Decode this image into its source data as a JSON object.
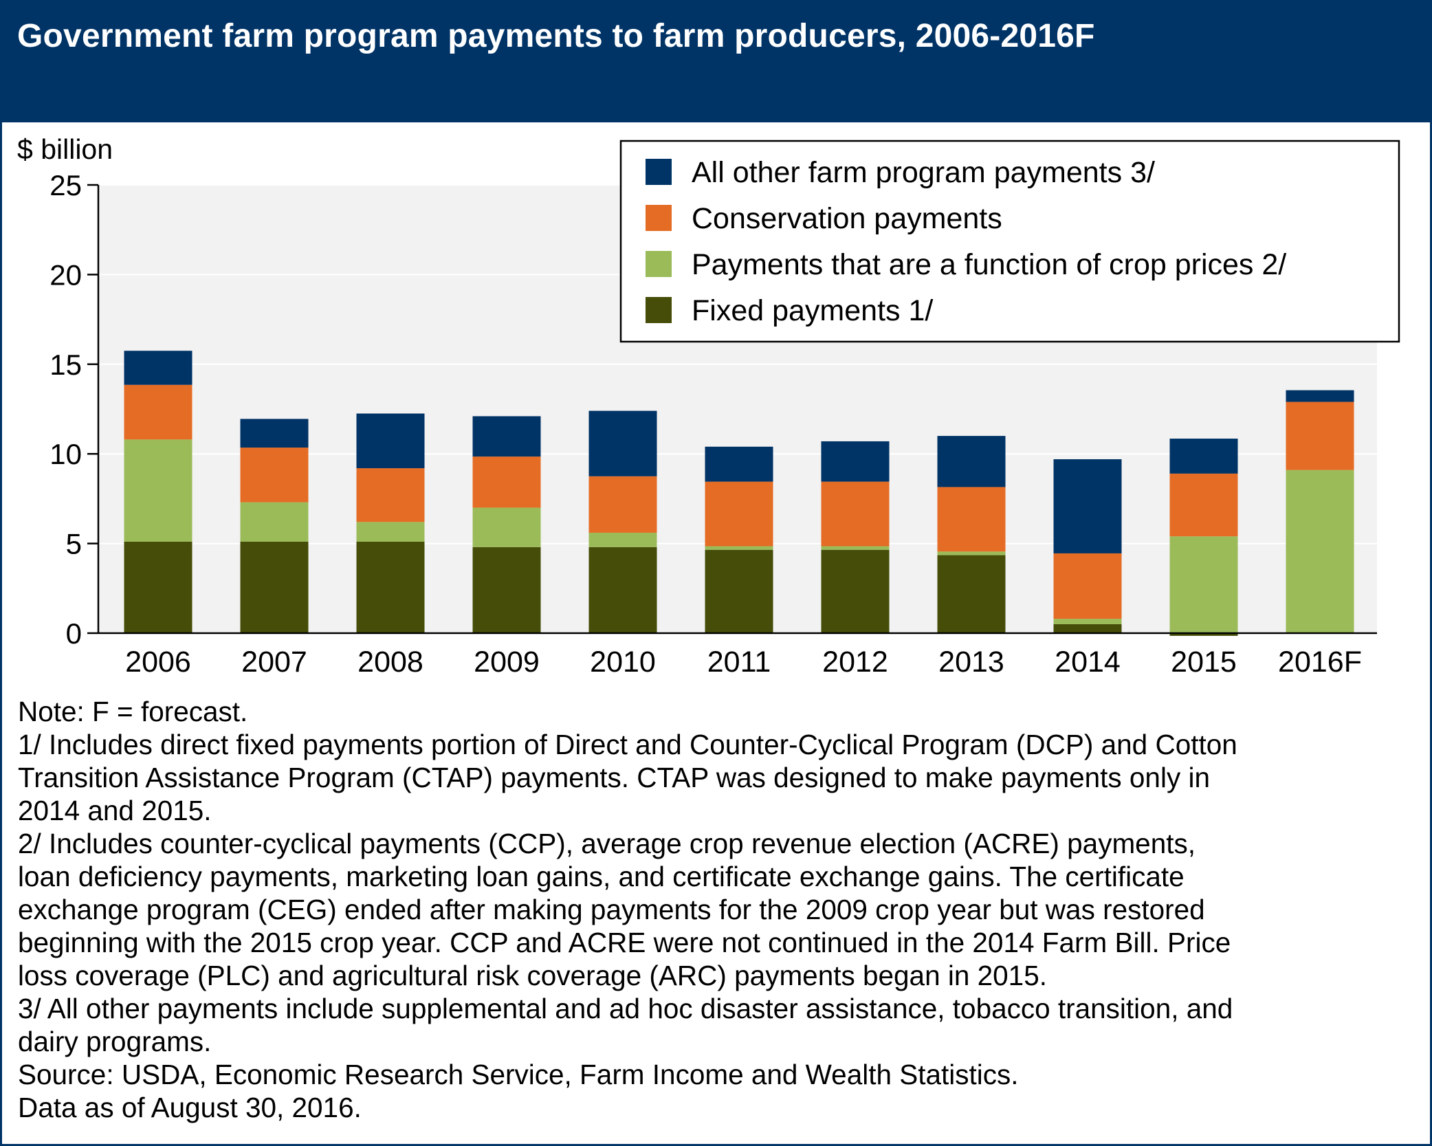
{
  "title": "Government farm program payments to farm producers, 2006-2016F",
  "chart_data": {
    "type": "bar",
    "stacked": true,
    "ylabel": "$ billion",
    "ylim": [
      0,
      25
    ],
    "yticks": [
      0,
      5,
      10,
      15,
      20,
      25
    ],
    "grid": true,
    "legend_position": "top-right",
    "categories": [
      "2006",
      "2007",
      "2008",
      "2009",
      "2010",
      "2011",
      "2012",
      "2013",
      "2014",
      "2015",
      "2016F"
    ],
    "series": [
      {
        "name": "Fixed payments 1/",
        "color": "#454d08",
        "values": [
          5.1,
          5.1,
          5.1,
          4.8,
          4.8,
          4.65,
          4.65,
          4.35,
          0.5,
          -0.15,
          0.0
        ]
      },
      {
        "name": "Payments that are a function of crop prices 2/",
        "color": "#9bbb59",
        "values": [
          5.7,
          2.2,
          1.1,
          2.2,
          0.8,
          0.2,
          0.2,
          0.2,
          0.3,
          5.4,
          9.1
        ]
      },
      {
        "name": "Conservation payments",
        "color": "#e46c25",
        "values": [
          3.05,
          3.05,
          3.0,
          2.85,
          3.15,
          3.6,
          3.6,
          3.6,
          3.65,
          3.5,
          3.8
        ]
      },
      {
        "name": "All other farm program payments 3/",
        "color": "#003366",
        "values": [
          1.9,
          1.6,
          3.05,
          2.25,
          3.65,
          1.95,
          2.25,
          2.85,
          5.25,
          1.95,
          0.65
        ]
      }
    ],
    "legend_order": [
      "All other farm program payments 3/",
      "Conservation payments",
      "Payments that are a function of crop prices 2/",
      "Fixed payments 1/"
    ]
  },
  "colors": {
    "header_background": "#003366",
    "plot_background": "#f2f2f2",
    "gridline": "#ffffff"
  },
  "notes": [
    "Note: F = forecast.",
    "1/ Includes direct fixed payments portion of Direct and Counter-Cyclical Program (DCP) and Cotton",
    "Transition Assistance Program (CTAP) payments. CTAP was designed to make payments only in",
    "2014 and 2015.",
    "2/ Includes counter-cyclical payments (CCP), average crop revenue election (ACRE) payments,",
    "loan deficiency payments, marketing loan gains, and certificate exchange gains. The certificate",
    "exchange program (CEG) ended after making payments for the 2009 crop year but was restored",
    "beginning with the 2015 crop year. CCP and ACRE were not continued in the 2014 Farm Bill. Price",
    "loss coverage (PLC) and agricultural risk coverage (ARC) payments began in 2015.",
    "3/ All other payments include supplemental and ad hoc disaster assistance, tobacco transition, and",
    "dairy programs.",
    "Source: USDA, Economic Research Service, Farm Income and Wealth Statistics.",
    "Data as of August 30, 2016."
  ]
}
